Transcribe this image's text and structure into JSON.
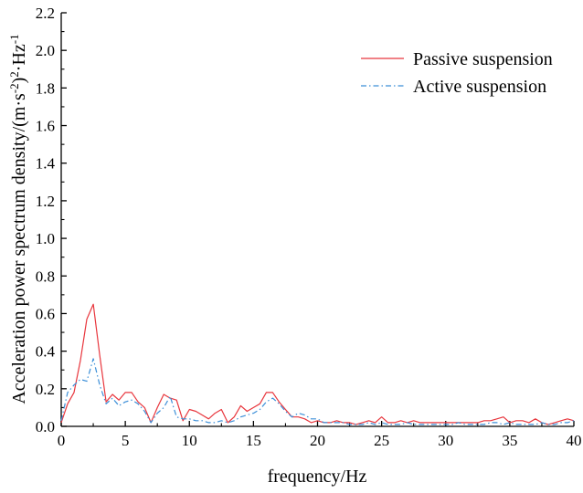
{
  "chart_data": {
    "type": "line",
    "xlabel": "frequency/Hz",
    "ylabel": {
      "main": "Acceleration power spectrum density/(m·s",
      "sup1": "-2",
      "mid": ")",
      "sup2": "2",
      "mid2": "·Hz",
      "sup3": "-1"
    },
    "xlim": [
      0,
      40
    ],
    "ylim": [
      0,
      2.2
    ],
    "x_ticks": [
      "0",
      "5",
      "10",
      "15",
      "20",
      "25",
      "30",
      "35",
      "40"
    ],
    "x_tick_values": [
      0,
      5,
      10,
      15,
      20,
      25,
      30,
      35,
      40
    ],
    "y_ticks": [
      "0.0",
      "0.2",
      "0.4",
      "0.6",
      "0.8",
      "1.0",
      "1.2",
      "1.4",
      "1.6",
      "1.8",
      "2.0",
      "2.2"
    ],
    "y_tick_values": [
      0,
      0.2,
      0.4,
      0.6,
      0.8,
      1.0,
      1.2,
      1.4,
      1.6,
      1.8,
      2.0,
      2.2
    ],
    "grid": false,
    "legend_position": "top-right",
    "series": [
      {
        "name": "Passive suspension",
        "color": "#e8363d",
        "dash": "solid",
        "x": [
          0,
          0.5,
          1.0,
          1.5,
          2.0,
          2.5,
          3.0,
          3.5,
          4.0,
          4.5,
          5.0,
          5.5,
          6.0,
          6.5,
          7.0,
          7.5,
          8.0,
          8.5,
          9.0,
          9.5,
          10.0,
          10.5,
          11.0,
          11.5,
          12.0,
          12.5,
          13.0,
          13.5,
          14.0,
          14.5,
          15.0,
          15.5,
          16.0,
          16.5,
          17.0,
          17.5,
          18.0,
          18.5,
          19.0,
          19.5,
          20.0,
          20.5,
          21.0,
          21.5,
          22.0,
          22.5,
          23.0,
          23.5,
          24.0,
          24.5,
          25.0,
          25.5,
          26.0,
          26.5,
          27.0,
          27.5,
          28.0,
          28.5,
          29.0,
          29.5,
          30.0,
          30.5,
          31.0,
          31.5,
          32.0,
          32.5,
          33.0,
          33.5,
          34.0,
          34.5,
          35.0,
          35.5,
          36.0,
          36.5,
          37.0,
          37.5,
          38.0,
          38.5,
          39.0,
          39.5,
          40.0
        ],
        "y": [
          0.02,
          0.12,
          0.18,
          0.35,
          0.57,
          0.65,
          0.38,
          0.13,
          0.17,
          0.14,
          0.18,
          0.18,
          0.13,
          0.1,
          0.02,
          0.1,
          0.17,
          0.15,
          0.14,
          0.03,
          0.09,
          0.08,
          0.06,
          0.04,
          0.07,
          0.09,
          0.02,
          0.05,
          0.11,
          0.08,
          0.1,
          0.12,
          0.18,
          0.18,
          0.13,
          0.09,
          0.05,
          0.05,
          0.04,
          0.02,
          0.03,
          0.02,
          0.02,
          0.03,
          0.02,
          0.02,
          0.01,
          0.02,
          0.03,
          0.02,
          0.05,
          0.02,
          0.02,
          0.03,
          0.02,
          0.03,
          0.02,
          0.02,
          0.02,
          0.02,
          0.02,
          0.02,
          0.02,
          0.02,
          0.02,
          0.02,
          0.03,
          0.03,
          0.04,
          0.05,
          0.02,
          0.03,
          0.03,
          0.02,
          0.04,
          0.02,
          0.01,
          0.02,
          0.03,
          0.04,
          0.03
        ]
      },
      {
        "name": "Active suspension",
        "color": "#3c8fd8",
        "dash": "dashdot",
        "x": [
          0,
          0.5,
          1.0,
          1.5,
          2.0,
          2.5,
          3.0,
          3.5,
          4.0,
          4.5,
          5.0,
          5.5,
          6.0,
          6.5,
          7.0,
          7.5,
          8.0,
          8.5,
          9.0,
          9.5,
          10.0,
          10.5,
          11.0,
          11.5,
          12.0,
          12.5,
          13.0,
          13.5,
          14.0,
          14.5,
          15.0,
          15.5,
          16.0,
          16.5,
          17.0,
          17.5,
          18.0,
          18.5,
          19.0,
          19.5,
          20.0,
          20.5,
          21.0,
          21.5,
          22.0,
          22.5,
          23.0,
          23.5,
          24.0,
          24.5,
          25.0,
          25.5,
          26.0,
          26.5,
          27.0,
          27.5,
          28.0,
          28.5,
          29.0,
          29.5,
          30.0,
          30.5,
          31.0,
          31.5,
          32.0,
          32.5,
          33.0,
          33.5,
          34.0,
          34.5,
          35.0,
          35.5,
          36.0,
          36.5,
          37.0,
          37.5,
          38.0,
          38.5,
          39.0,
          39.5,
          40.0
        ],
        "y": [
          0.03,
          0.18,
          0.22,
          0.25,
          0.24,
          0.36,
          0.22,
          0.12,
          0.15,
          0.11,
          0.13,
          0.14,
          0.12,
          0.08,
          0.02,
          0.07,
          0.1,
          0.16,
          0.05,
          0.04,
          0.04,
          0.03,
          0.03,
          0.02,
          0.02,
          0.03,
          0.02,
          0.03,
          0.05,
          0.06,
          0.07,
          0.09,
          0.13,
          0.15,
          0.12,
          0.08,
          0.05,
          0.07,
          0.06,
          0.04,
          0.04,
          0.02,
          0.02,
          0.02,
          0.02,
          0.01,
          0.01,
          0.01,
          0.02,
          0.01,
          0.02,
          0.01,
          0.01,
          0.01,
          0.02,
          0.01,
          0.01,
          0.01,
          0.01,
          0.01,
          0.01,
          0.01,
          0.02,
          0.01,
          0.01,
          0.01,
          0.01,
          0.02,
          0.02,
          0.01,
          0.02,
          0.01,
          0.01,
          0.01,
          0.01,
          0.02,
          0.01,
          0.01,
          0.02,
          0.02,
          0.03
        ]
      }
    ]
  }
}
